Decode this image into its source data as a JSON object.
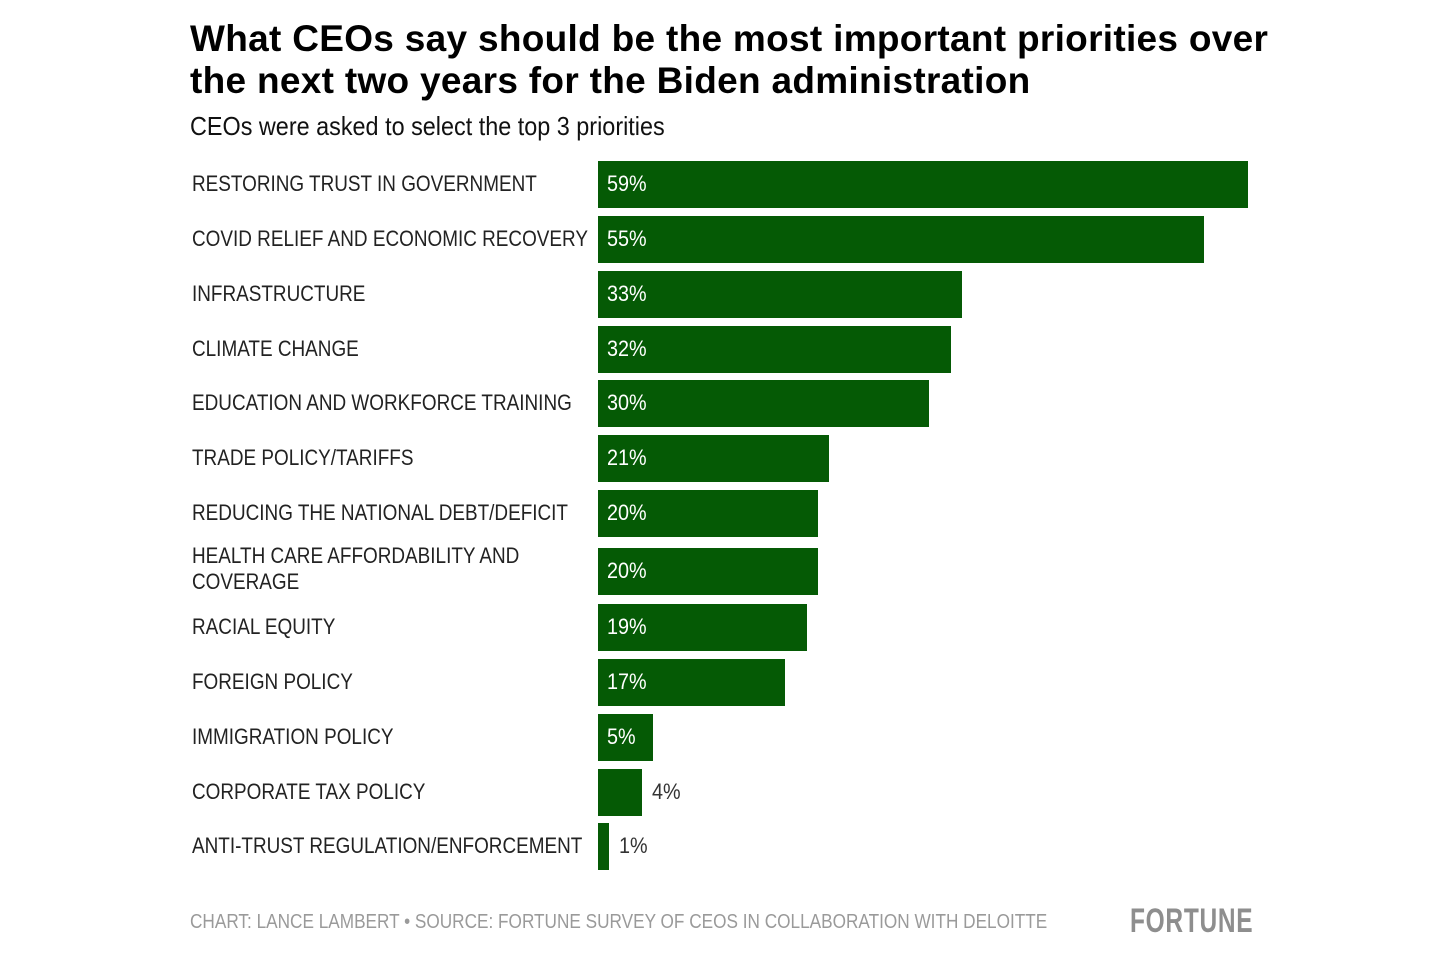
{
  "chart_data": {
    "type": "bar",
    "orientation": "horizontal",
    "title": "What CEOs say should be the most important priorities over the next two years for the Biden administration",
    "subtitle": "CEOs were asked to select the top 3 priorities",
    "categories": [
      "RESTORING TRUST IN GOVERNMENT",
      "COVID RELIEF AND ECONOMIC RECOVERY",
      "INFRASTRUCTURE",
      "CLIMATE CHANGE",
      "EDUCATION AND WORKFORCE TRAINING",
      "TRADE POLICY/TARIFFS",
      "REDUCING THE NATIONAL DEBT/DEFICIT",
      "HEALTH CARE AFFORDABILITY AND COVERAGE",
      "RACIAL EQUITY",
      "FOREIGN POLICY",
      "IMMIGRATION POLICY",
      "CORPORATE TAX POLICY",
      "ANTI-TRUST REGULATION/ENFORCEMENT"
    ],
    "values": [
      59,
      55,
      33,
      32,
      30,
      21,
      20,
      20,
      19,
      17,
      5,
      4,
      1
    ],
    "value_labels": [
      "59%",
      "55%",
      "33%",
      "32%",
      "30%",
      "21%",
      "20%",
      "20%",
      "19%",
      "17%",
      "5%",
      "4%",
      "1%"
    ],
    "unit": "%",
    "xlim": [
      0,
      59
    ],
    "grid": false,
    "bar_color": "#055a05"
  },
  "footer": {
    "credit": "CHART: LANCE LAMBERT • SOURCE: FORTUNE SURVEY OF CEOS IN COLLABORATION WITH DELOITTE",
    "logo": "FORTUNE"
  }
}
